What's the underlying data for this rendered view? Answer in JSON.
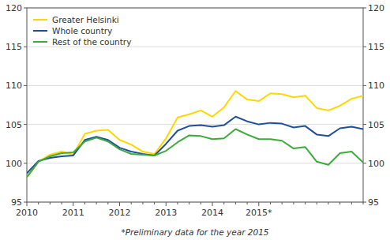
{
  "chart_data": {
    "type": "line",
    "categories": [
      "2010",
      null,
      null,
      null,
      "2011",
      null,
      null,
      null,
      "2012",
      null,
      null,
      null,
      "2013",
      null,
      null,
      null,
      "2014",
      null,
      null,
      null,
      "2015*",
      null,
      null,
      null,
      null,
      null,
      null,
      null,
      null,
      null
    ],
    "series": [
      {
        "name": "Greater Helsinki",
        "color": "#FFD700",
        "values": [
          98.2,
          100.2,
          101.1,
          101.5,
          101.1,
          103.8,
          104.2,
          104.3,
          103.0,
          102.4,
          101.5,
          101.2,
          103.2,
          105.9,
          106.3,
          106.8,
          106.0,
          107.2,
          109.3,
          108.2,
          108.0,
          109.0,
          108.9,
          108.5,
          108.7,
          107.1,
          106.8,
          107.4,
          108.3,
          108.7
        ]
      },
      {
        "name": "Whole country",
        "color": "#1F4E9A",
        "values": [
          98.7,
          100.3,
          100.7,
          100.9,
          101.0,
          103.0,
          103.4,
          103.0,
          102.0,
          101.5,
          101.2,
          101.0,
          102.5,
          104.2,
          104.8,
          104.9,
          104.7,
          104.9,
          106.0,
          105.4,
          105.0,
          105.2,
          105.1,
          104.6,
          104.8,
          103.7,
          103.5,
          104.5,
          104.7,
          104.4
        ]
      },
      {
        "name": "Rest of the country",
        "color": "#3DAA3D",
        "values": [
          98.2,
          100.2,
          100.9,
          101.3,
          101.4,
          102.8,
          103.3,
          102.8,
          101.8,
          101.2,
          101.1,
          101.0,
          101.6,
          102.7,
          103.6,
          103.5,
          103.1,
          103.2,
          104.4,
          103.7,
          103.1,
          103.1,
          102.9,
          101.9,
          102.1,
          100.2,
          99.8,
          101.3,
          101.5,
          100.1
        ]
      }
    ],
    "ylim": [
      95,
      120
    ],
    "yticks": [
      95,
      100,
      105,
      110,
      115,
      120
    ],
    "y2lim": [
      95,
      120
    ],
    "y2ticks": [
      95,
      100,
      105,
      110,
      115,
      120
    ],
    "grid": true,
    "legend": "upper left",
    "annotations": [
      "*Preliminary data for the year 2015"
    ]
  }
}
